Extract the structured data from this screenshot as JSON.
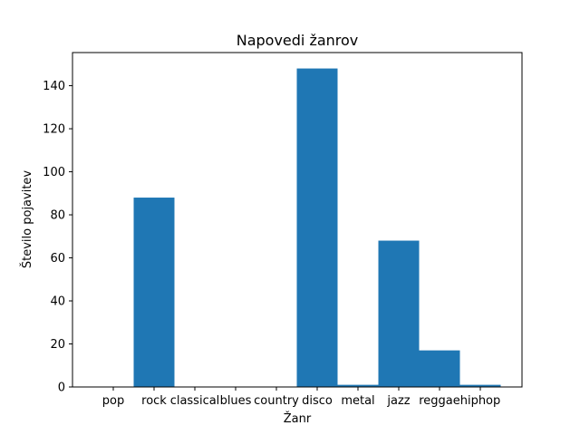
{
  "chart_data": {
    "type": "bar",
    "title": "Napovedi žanrov",
    "xlabel": "Žanr",
    "ylabel": "Število pojavitev",
    "categories": [
      "pop",
      "rock",
      "classical",
      "blues",
      "country",
      "disco",
      "metal",
      "jazz",
      "reggae",
      "hiphop"
    ],
    "values": [
      0,
      88,
      0,
      0,
      0,
      148,
      1,
      68,
      17,
      1
    ],
    "ylim": [
      0,
      155.4
    ],
    "yticks": [
      0,
      20,
      40,
      60,
      80,
      100,
      120,
      140
    ],
    "grid": false,
    "bar_color": "#1f77b4"
  }
}
